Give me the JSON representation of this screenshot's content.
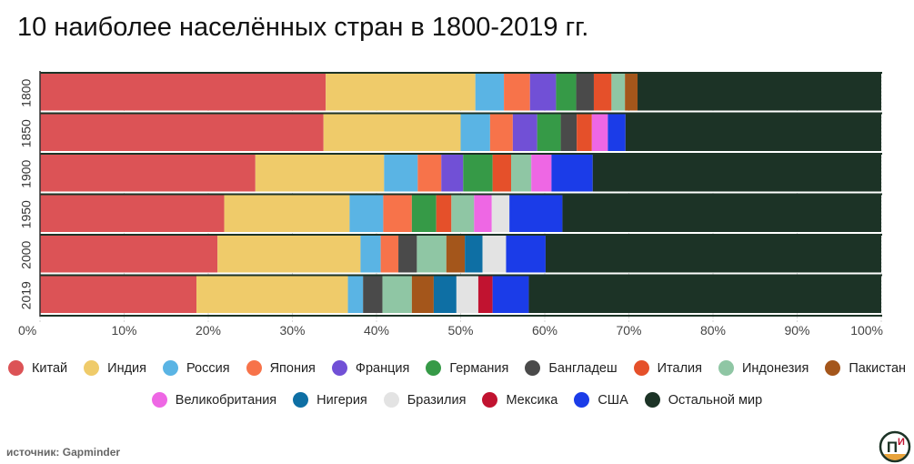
{
  "title": "10 наиболее населённых стран в 1800-2019 гг.",
  "source_prefix": "источник: ",
  "source_name": "Gapminder",
  "logo_text": "П",
  "logo_text_2": "И",
  "chart_data": {
    "type": "bar",
    "orientation": "horizontal",
    "stacked": true,
    "normalized_percent": true,
    "categories": [
      "1800",
      "1850",
      "1900",
      "1950",
      "2000",
      "2019"
    ],
    "x_ticks": [
      "0%",
      "10%",
      "20%",
      "30%",
      "40%",
      "50%",
      "60%",
      "70%",
      "80%",
      "90%",
      "100%"
    ],
    "xlim": [
      0,
      100
    ],
    "grid": true,
    "legend_position": "bottom",
    "series": [
      {
        "name": "Китай",
        "color": "#DC5356",
        "values": [
          34.0,
          33.7,
          25.6,
          21.9,
          21.1,
          18.6
        ]
      },
      {
        "name": "Индия",
        "color": "#EFCB6A",
        "values": [
          17.8,
          16.3,
          15.3,
          14.9,
          17.0,
          18.0
        ]
      },
      {
        "name": "Россия",
        "color": "#5AB4E4",
        "values": [
          3.4,
          3.5,
          4.0,
          4.0,
          2.4,
          1.8
        ]
      },
      {
        "name": "Япония",
        "color": "#F7734A",
        "values": [
          3.1,
          2.7,
          2.8,
          3.4,
          2.1,
          0
        ]
      },
      {
        "name": "Франция",
        "color": "#7150D6",
        "values": [
          3.1,
          2.9,
          2.6,
          0,
          0,
          0
        ]
      },
      {
        "name": "Германия",
        "color": "#369A47",
        "values": [
          2.4,
          2.8,
          3.5,
          2.9,
          0,
          0
        ]
      },
      {
        "name": "Бангладеш",
        "color": "#4A4A4A",
        "values": [
          2.1,
          1.9,
          0,
          0,
          2.2,
          2.3
        ]
      },
      {
        "name": "Италия",
        "color": "#E5502A",
        "values": [
          2.1,
          1.8,
          2.2,
          1.8,
          0,
          0
        ]
      },
      {
        "name": "Индонезия",
        "color": "#8FC6A4",
        "values": [
          1.6,
          0,
          2.4,
          2.7,
          3.5,
          3.5
        ]
      },
      {
        "name": "Пакистан",
        "color": "#A4561B",
        "values": [
          1.5,
          0,
          0,
          0,
          2.2,
          2.6
        ]
      },
      {
        "name": "Великобритания",
        "color": "#EE67E4",
        "values": [
          0,
          1.9,
          2.4,
          2.1,
          0,
          0
        ]
      },
      {
        "name": "Нигерия",
        "color": "#0E6FA4",
        "values": [
          0,
          0,
          0,
          0,
          2.1,
          2.7
        ]
      },
      {
        "name": "Бразилия",
        "color": "#E3E3E3",
        "values": [
          0,
          0,
          0,
          2.1,
          2.8,
          2.6
        ]
      },
      {
        "name": "Мексика",
        "color": "#C11330",
        "values": [
          0,
          0,
          0,
          0,
          0,
          1.7
        ]
      },
      {
        "name": "США",
        "color": "#1B3CE8",
        "values": [
          0,
          2.1,
          4.9,
          6.3,
          4.7,
          4.3
        ]
      },
      {
        "name": "Остальной мир",
        "color": "#1C3326",
        "values": [
          29.0,
          30.4,
          34.3,
          37.9,
          39.9,
          41.9
        ]
      }
    ]
  }
}
